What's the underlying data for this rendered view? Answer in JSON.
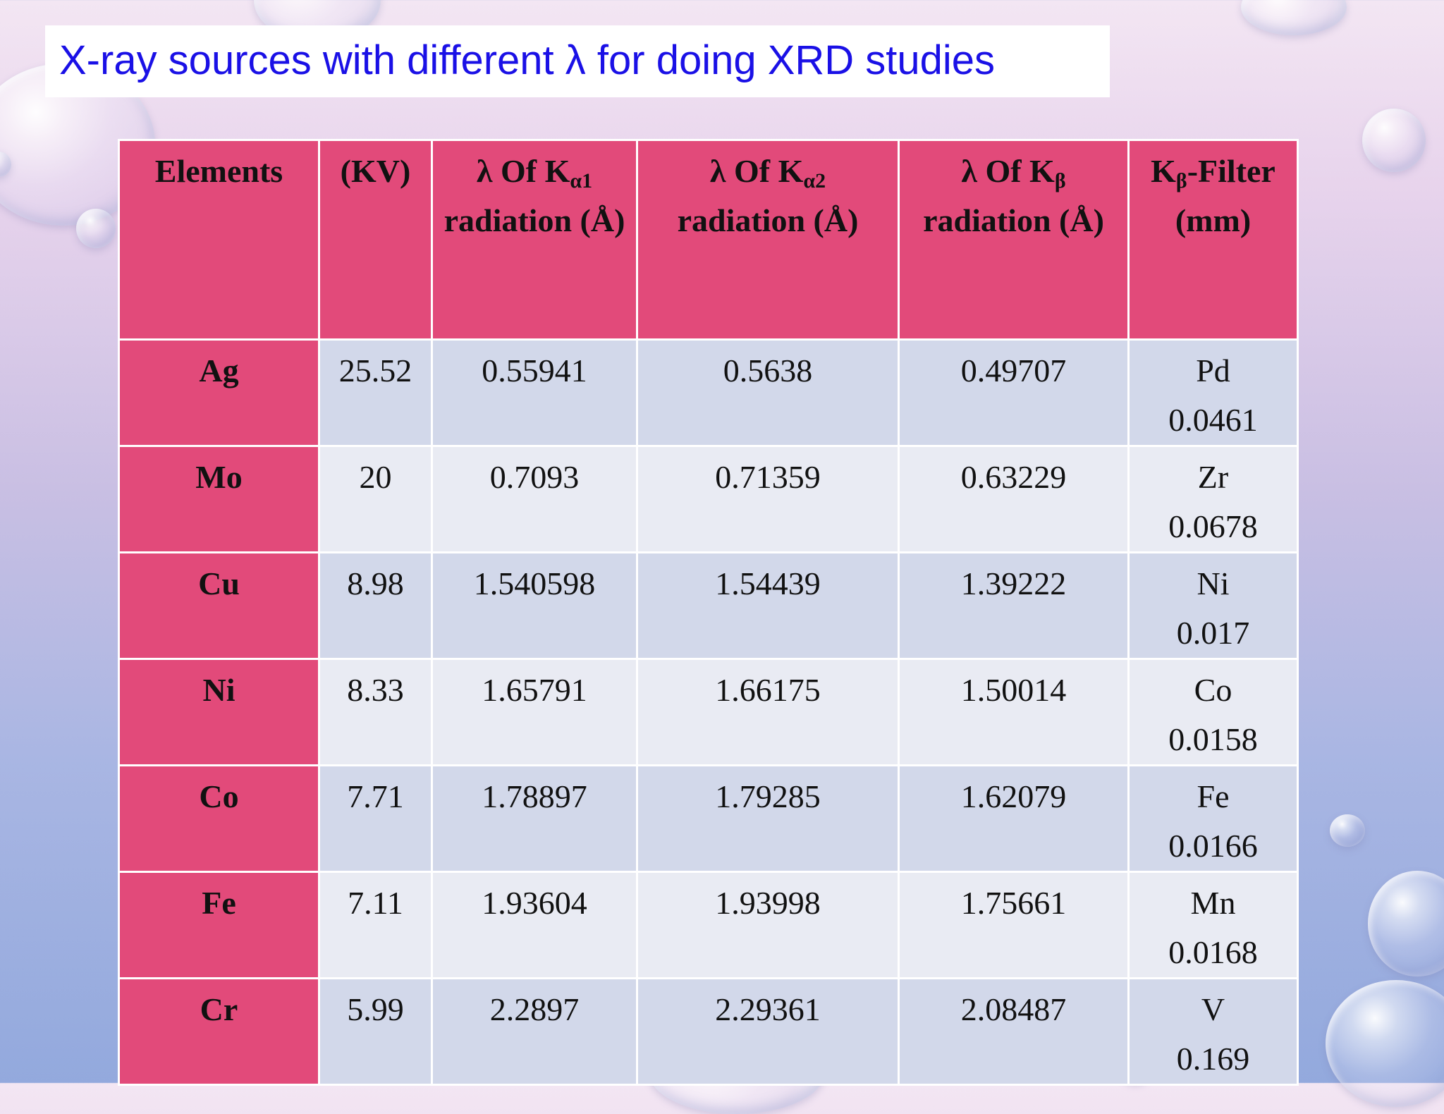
{
  "title": "X-ray sources with different λ for doing XRD studies",
  "table": {
    "headers": {
      "elements": "Elements",
      "kv": "(KV)",
      "ka1_pre": "λ Of K",
      "ka1_sub": "α1",
      "ka1_post": "radiation (Å)",
      "ka2_pre": "λ Of K",
      "ka2_sub": "α2",
      "ka2_post": "radiation (Å)",
      "kb_pre": "λ Of K",
      "kb_sub": "β",
      "kb_post": "radiation (Å)",
      "filter_pre": "K",
      "filter_sub": "β",
      "filter_post": "-Filter (mm)"
    },
    "rows": [
      {
        "element": "Ag",
        "kv": "25.52",
        "ka1": "0.55941",
        "ka2": "0.5638",
        "kb": "0.49707",
        "filter": "Pd",
        "filter_mm": "0.0461"
      },
      {
        "element": "Mo",
        "kv": "20",
        "ka1": "0.7093",
        "ka2": "0.71359",
        "kb": "0.63229",
        "filter": "Zr",
        "filter_mm": "0.0678"
      },
      {
        "element": "Cu",
        "kv": "8.98",
        "ka1": "1.540598",
        "ka2": "1.54439",
        "kb": "1.39222",
        "filter": "Ni",
        "filter_mm": "0.017"
      },
      {
        "element": "Ni",
        "kv": "8.33",
        "ka1": "1.65791",
        "ka2": "1.66175",
        "kb": "1.50014",
        "filter": "Co",
        "filter_mm": "0.0158"
      },
      {
        "element": "Co",
        "kv": "7.71",
        "ka1": "1.78897",
        "ka2": "1.79285",
        "kb": "1.62079",
        "filter": "Fe",
        "filter_mm": "0.0166"
      },
      {
        "element": "Fe",
        "kv": "7.11",
        "ka1": "1.93604",
        "ka2": "1.93998",
        "kb": "1.75661",
        "filter": "Mn",
        "filter_mm": "0.0168"
      },
      {
        "element": "Cr",
        "kv": "5.99",
        "ka1": "2.2897",
        "ka2": "2.29361",
        "kb": "2.08487",
        "filter": "V",
        "filter_mm": "0.169"
      }
    ]
  }
}
